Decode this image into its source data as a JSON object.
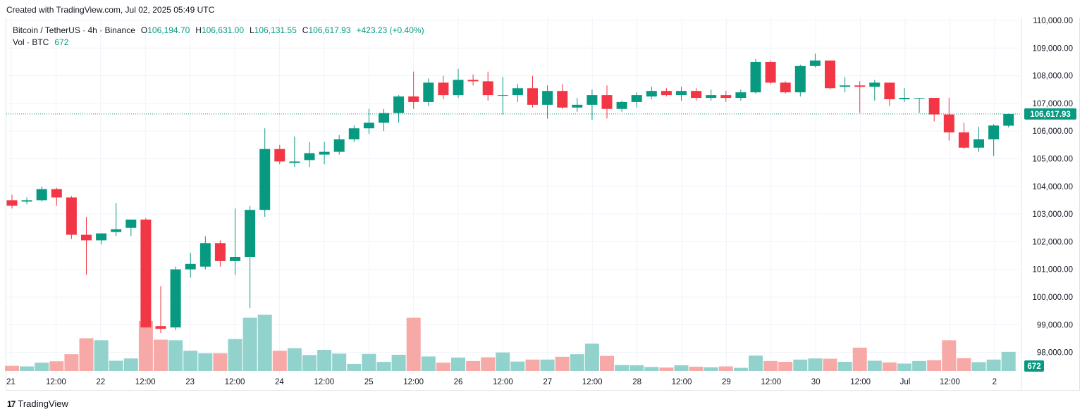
{
  "caption": "Created with TradingView.com, Jul 02, 2025 05:49 UTC",
  "legend": {
    "symbol": "Bitcoin / TetherUS · 4h · Binance",
    "o_label": "O",
    "o_value": "106,194.70",
    "h_label": "H",
    "h_value": "106,631.00",
    "l_label": "L",
    "l_value": "106,131.55",
    "c_label": "C",
    "c_value": "106,617.93",
    "change": "+423.23 (+0.40%)",
    "vol_label": "Vol · BTC",
    "vol_value": "672"
  },
  "footer": {
    "brand": "TradingView",
    "logo": "17"
  },
  "colors": {
    "up": "#089981",
    "down": "#f23645",
    "vol_up": "#92d2cc",
    "vol_down": "#f7a9a7",
    "grid": "#f0f3fa",
    "last_price_line": "#089981"
  },
  "chart_data": {
    "type": "candlestick",
    "y_ticks": [
      "98,000.00",
      "99,000.00",
      "100,000.00",
      "101,000.00",
      "102,000.00",
      "103,000.00",
      "104,000.00",
      "105,000.00",
      "106,000.00",
      "107,000.00",
      "108,000.00",
      "109,000.00",
      "110,000.00"
    ],
    "ylim": [
      97200,
      110000
    ],
    "x_labels": [
      "21",
      "12:00",
      "22",
      "12:00",
      "23",
      "12:00",
      "24",
      "12:00",
      "25",
      "12:00",
      "26",
      "12:00",
      "27",
      "12:00",
      "28",
      "12:00",
      "29",
      "12:00",
      "30",
      "12:00",
      "Jul",
      "12:00",
      "2"
    ],
    "last_price_label": "106,617.93",
    "last_volume_label": "672",
    "candles": [
      {
        "o": 103500,
        "h": 103700,
        "l": 103200,
        "c": 103300,
        "v": 180
      },
      {
        "o": 103450,
        "h": 103600,
        "l": 103350,
        "c": 103500,
        "v": 160
      },
      {
        "o": 103500,
        "h": 104000,
        "l": 103450,
        "c": 103900,
        "v": 290
      },
      {
        "o": 103900,
        "h": 103950,
        "l": 103300,
        "c": 103600,
        "v": 340
      },
      {
        "o": 103600,
        "h": 103650,
        "l": 102100,
        "c": 102250,
        "v": 590
      },
      {
        "o": 102250,
        "h": 102900,
        "l": 100800,
        "c": 102050,
        "v": 1150
      },
      {
        "o": 102050,
        "h": 102300,
        "l": 101900,
        "c": 102300,
        "v": 1080
      },
      {
        "o": 102350,
        "h": 103400,
        "l": 102200,
        "c": 102450,
        "v": 360
      },
      {
        "o": 102500,
        "h": 102800,
        "l": 102200,
        "c": 102800,
        "v": 440
      },
      {
        "o": 102800,
        "h": 102850,
        "l": 98900,
        "c": 98900,
        "v": 1760
      },
      {
        "o": 98950,
        "h": 100400,
        "l": 98700,
        "c": 98850,
        "v": 1100
      },
      {
        "o": 98900,
        "h": 101100,
        "l": 98800,
        "c": 101000,
        "v": 1080
      },
      {
        "o": 101000,
        "h": 101600,
        "l": 100700,
        "c": 101200,
        "v": 710
      },
      {
        "o": 101100,
        "h": 102200,
        "l": 101000,
        "c": 101950,
        "v": 620
      },
      {
        "o": 101950,
        "h": 102050,
        "l": 101100,
        "c": 101300,
        "v": 620
      },
      {
        "o": 101300,
        "h": 103200,
        "l": 100800,
        "c": 101450,
        "v": 1120
      },
      {
        "o": 101450,
        "h": 103300,
        "l": 99600,
        "c": 103150,
        "v": 1870
      },
      {
        "o": 103150,
        "h": 106100,
        "l": 102900,
        "c": 105350,
        "v": 1980
      },
      {
        "o": 105350,
        "h": 105500,
        "l": 104800,
        "c": 104900,
        "v": 710
      },
      {
        "o": 104850,
        "h": 105800,
        "l": 104700,
        "c": 104900,
        "v": 800
      },
      {
        "o": 104950,
        "h": 105600,
        "l": 104700,
        "c": 105200,
        "v": 560
      },
      {
        "o": 105150,
        "h": 105600,
        "l": 104800,
        "c": 105250,
        "v": 740
      },
      {
        "o": 105250,
        "h": 105850,
        "l": 105150,
        "c": 105700,
        "v": 610
      },
      {
        "o": 105700,
        "h": 106200,
        "l": 105600,
        "c": 106100,
        "v": 250
      },
      {
        "o": 106100,
        "h": 106800,
        "l": 105900,
        "c": 106300,
        "v": 600
      },
      {
        "o": 106300,
        "h": 106800,
        "l": 106000,
        "c": 106650,
        "v": 320
      },
      {
        "o": 106650,
        "h": 107300,
        "l": 106300,
        "c": 107250,
        "v": 570
      },
      {
        "o": 107250,
        "h": 108150,
        "l": 106800,
        "c": 107050,
        "v": 1870
      },
      {
        "o": 107050,
        "h": 107900,
        "l": 106900,
        "c": 107750,
        "v": 510
      },
      {
        "o": 107750,
        "h": 108000,
        "l": 107150,
        "c": 107300,
        "v": 290
      },
      {
        "o": 107300,
        "h": 108250,
        "l": 107200,
        "c": 107850,
        "v": 470
      },
      {
        "o": 107850,
        "h": 108050,
        "l": 107650,
        "c": 107800,
        "v": 350
      },
      {
        "o": 107800,
        "h": 108150,
        "l": 107100,
        "c": 107300,
        "v": 480
      },
      {
        "o": 107300,
        "h": 107950,
        "l": 106600,
        "c": 107300,
        "v": 650
      },
      {
        "o": 107300,
        "h": 107700,
        "l": 107050,
        "c": 107550,
        "v": 330
      },
      {
        "o": 107550,
        "h": 108000,
        "l": 106850,
        "c": 106950,
        "v": 400
      },
      {
        "o": 106950,
        "h": 107650,
        "l": 106450,
        "c": 107450,
        "v": 400
      },
      {
        "o": 107450,
        "h": 107700,
        "l": 106800,
        "c": 106850,
        "v": 500
      },
      {
        "o": 106850,
        "h": 107200,
        "l": 106700,
        "c": 106950,
        "v": 590
      },
      {
        "o": 106950,
        "h": 107500,
        "l": 106400,
        "c": 107300,
        "v": 960
      },
      {
        "o": 107300,
        "h": 107650,
        "l": 106450,
        "c": 106800,
        "v": 530
      },
      {
        "o": 106800,
        "h": 107100,
        "l": 106700,
        "c": 107050,
        "v": 210
      },
      {
        "o": 107050,
        "h": 107400,
        "l": 106850,
        "c": 107300,
        "v": 200
      },
      {
        "o": 107250,
        "h": 107600,
        "l": 107150,
        "c": 107450,
        "v": 140
      },
      {
        "o": 107450,
        "h": 107550,
        "l": 107250,
        "c": 107300,
        "v": 120
      },
      {
        "o": 107300,
        "h": 107600,
        "l": 107100,
        "c": 107450,
        "v": 200
      },
      {
        "o": 107450,
        "h": 107550,
        "l": 107100,
        "c": 107200,
        "v": 150
      },
      {
        "o": 107200,
        "h": 107500,
        "l": 107100,
        "c": 107300,
        "v": 130
      },
      {
        "o": 107300,
        "h": 107450,
        "l": 107050,
        "c": 107200,
        "v": 160
      },
      {
        "o": 107200,
        "h": 107500,
        "l": 107100,
        "c": 107400,
        "v": 110
      },
      {
        "o": 107400,
        "h": 108600,
        "l": 107350,
        "c": 108500,
        "v": 540
      },
      {
        "o": 108500,
        "h": 108550,
        "l": 107700,
        "c": 107750,
        "v": 350
      },
      {
        "o": 107750,
        "h": 107800,
        "l": 107350,
        "c": 107400,
        "v": 320
      },
      {
        "o": 107400,
        "h": 108400,
        "l": 107250,
        "c": 108350,
        "v": 400
      },
      {
        "o": 108350,
        "h": 108800,
        "l": 108300,
        "c": 108550,
        "v": 440
      },
      {
        "o": 108550,
        "h": 108550,
        "l": 107500,
        "c": 107550,
        "v": 430
      },
      {
        "o": 107600,
        "h": 107950,
        "l": 107400,
        "c": 107650,
        "v": 320
      },
      {
        "o": 107650,
        "h": 107800,
        "l": 106650,
        "c": 107600,
        "v": 820
      },
      {
        "o": 107600,
        "h": 107850,
        "l": 107100,
        "c": 107750,
        "v": 360
      },
      {
        "o": 107750,
        "h": 107750,
        "l": 106900,
        "c": 107150,
        "v": 300
      },
      {
        "o": 107150,
        "h": 107550,
        "l": 107050,
        "c": 107200,
        "v": 260
      },
      {
        "o": 107200,
        "h": 107200,
        "l": 106650,
        "c": 107200,
        "v": 350
      },
      {
        "o": 107200,
        "h": 107200,
        "l": 106350,
        "c": 106600,
        "v": 380
      },
      {
        "o": 106600,
        "h": 107200,
        "l": 105650,
        "c": 105950,
        "v": 1080
      },
      {
        "o": 105950,
        "h": 106300,
        "l": 105350,
        "c": 105400,
        "v": 450
      },
      {
        "o": 105400,
        "h": 106150,
        "l": 105250,
        "c": 105700,
        "v": 310
      },
      {
        "o": 105700,
        "h": 106250,
        "l": 105100,
        "c": 106200,
        "v": 400
      },
      {
        "o": 106195,
        "h": 106631,
        "l": 106131,
        "c": 106618,
        "v": 672
      }
    ]
  }
}
